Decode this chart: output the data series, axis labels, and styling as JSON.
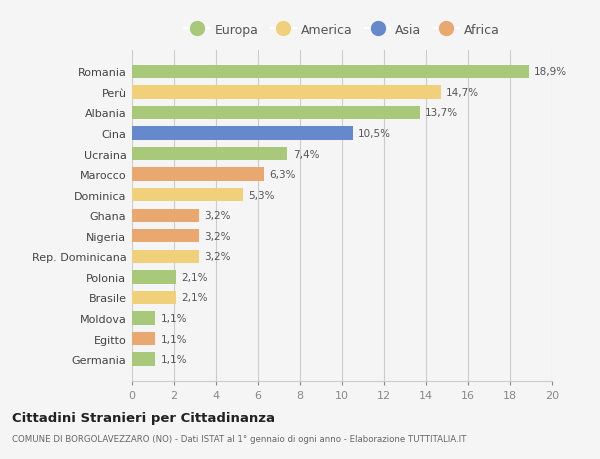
{
  "countries": [
    "Romania",
    "Perù",
    "Albania",
    "Cina",
    "Ucraina",
    "Marocco",
    "Dominica",
    "Ghana",
    "Nigeria",
    "Rep. Dominicana",
    "Polonia",
    "Brasile",
    "Moldova",
    "Egitto",
    "Germania"
  ],
  "values": [
    18.9,
    14.7,
    13.7,
    10.5,
    7.4,
    6.3,
    5.3,
    3.2,
    3.2,
    3.2,
    2.1,
    2.1,
    1.1,
    1.1,
    1.1
  ],
  "labels": [
    "18,9%",
    "14,7%",
    "13,7%",
    "10,5%",
    "7,4%",
    "6,3%",
    "5,3%",
    "3,2%",
    "3,2%",
    "3,2%",
    "2,1%",
    "2,1%",
    "1,1%",
    "1,1%",
    "1,1%"
  ],
  "continents": [
    "Europa",
    "America",
    "Europa",
    "Asia",
    "Europa",
    "Africa",
    "America",
    "Africa",
    "Africa",
    "America",
    "Europa",
    "America",
    "Europa",
    "Africa",
    "Europa"
  ],
  "colors": {
    "Europa": "#a8c87a",
    "America": "#f0d07a",
    "Asia": "#6688cc",
    "Africa": "#e8a870"
  },
  "legend_order": [
    "Europa",
    "America",
    "Asia",
    "Africa"
  ],
  "title": "Cittadini Stranieri per Cittadinanza",
  "subtitle": "COMUNE DI BORGOLAVEZZARO (NO) - Dati ISTAT al 1° gennaio di ogni anno - Elaborazione TUTTITALIA.IT",
  "xlabel_values": [
    0,
    2,
    4,
    6,
    8,
    10,
    12,
    14,
    16,
    18,
    20
  ],
  "xlim": [
    0,
    20
  ],
  "background_color": "#f5f5f5",
  "grid_color": "#cccccc"
}
